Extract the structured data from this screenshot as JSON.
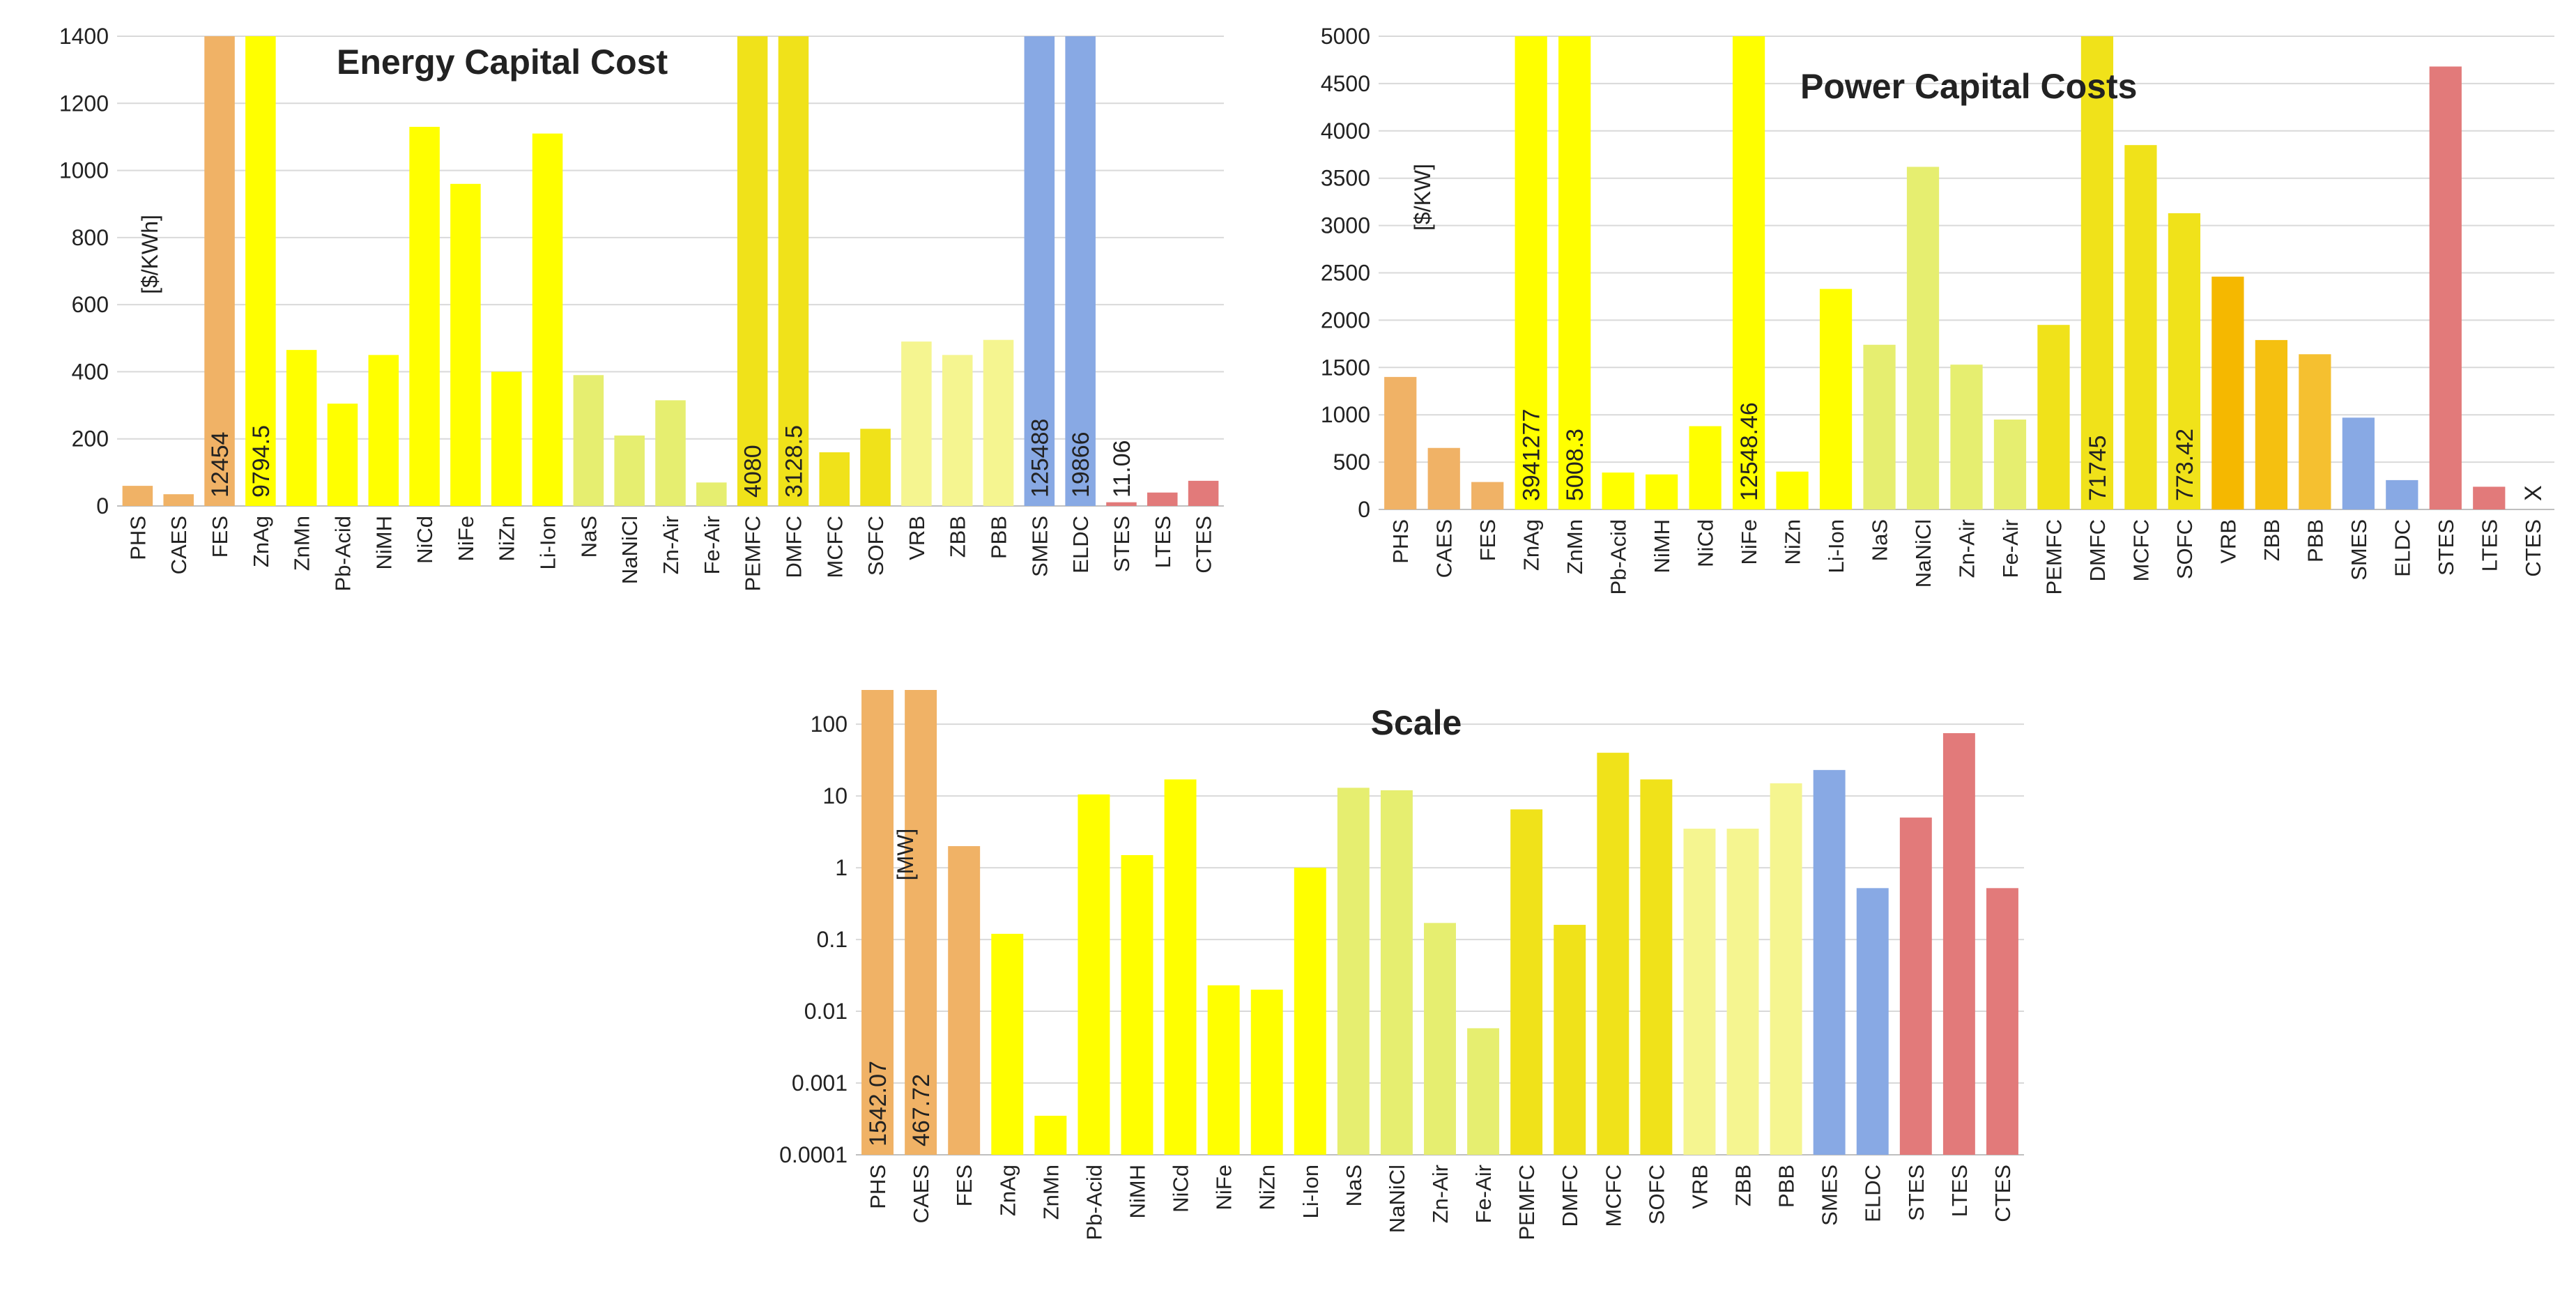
{
  "chart_data": [
    {
      "type": "bar",
      "title": "Energy Capital Cost",
      "y_label": "[$/KWh]",
      "categories": [
        "PHS",
        "CAES",
        "FES",
        "ZnAg",
        "ZnMn",
        "Pb-Acid",
        "NiMH",
        "NiCd",
        "NiFe",
        "NiZn",
        "Li-Ion",
        "NaS",
        "NaNiCl",
        "Zn-Air",
        "Fe-Air",
        "PEMFC",
        "DMFC",
        "MCFC",
        "SOFC",
        "VRB",
        "ZBB",
        "PBB",
        "SMES",
        "ELDC",
        "STES",
        "LTES",
        "CTES"
      ],
      "values": [
        60,
        35,
        12454,
        9794.5,
        465,
        305,
        450,
        1130,
        960,
        400,
        1110,
        390,
        210,
        315,
        70,
        4080,
        3128.5,
        160,
        230,
        490,
        450,
        495,
        125488,
        19866,
        11.06,
        40,
        75
      ],
      "value_labels": [
        null,
        null,
        "12454",
        "9794.5",
        null,
        null,
        null,
        null,
        null,
        null,
        null,
        null,
        null,
        null,
        null,
        "4080",
        "3128.5",
        null,
        null,
        null,
        null,
        null,
        "125488",
        "19866",
        "11.06",
        null,
        null
      ],
      "colors": [
        "#f0b266",
        "#f0b266",
        "#f0b266",
        "#ffff00",
        "#ffff00",
        "#ffff00",
        "#ffff00",
        "#ffff00",
        "#ffff00",
        "#ffff00",
        "#ffff00",
        "#e6ee70",
        "#e6ee70",
        "#e6ee70",
        "#e6ee70",
        "#f0e21a",
        "#f0e21a",
        "#f0e21a",
        "#f0e21a",
        "#f5f590",
        "#f5f590",
        "#f5f590",
        "#88a9e4",
        "#88a9e4",
        "#e27a7a",
        "#e27a7a",
        "#e27a7a"
      ],
      "ylim": [
        0,
        1400
      ],
      "yticks": [
        0,
        200,
        400,
        600,
        800,
        1000,
        1200,
        1400
      ],
      "grid": true,
      "log_scale": false
    },
    {
      "type": "bar",
      "title": "Power Capital Costs",
      "y_label": "[$/KW]",
      "categories": [
        "PHS",
        "CAES",
        "FES",
        "ZnAg",
        "ZnMn",
        "Pb-Acid",
        "NiMH",
        "NiCd",
        "NiFe",
        "NiZn",
        "Li-Ion",
        "NaS",
        "NaNiCl",
        "Zn-Air",
        "Fe-Air",
        "PEMFC",
        "DMFC",
        "MCFC",
        "SOFC",
        "VRB",
        "ZBB",
        "PBB",
        "SMES",
        "ELDC",
        "STES",
        "LTES",
        "CTES"
      ],
      "values": [
        1400,
        650,
        290,
        3941277,
        5008.3,
        390,
        370,
        880,
        12548.46,
        400,
        2330,
        1740,
        3620,
        1530,
        950,
        1950,
        71745,
        3850,
        3130,
        2460,
        1790,
        1640,
        970,
        310,
        4680,
        240,
        null
      ],
      "value_labels": [
        null,
        null,
        null,
        "3941277",
        "5008.3",
        null,
        null,
        null,
        "12548.46",
        null,
        null,
        null,
        null,
        null,
        null,
        null,
        "71745",
        null,
        null,
        null,
        null,
        null,
        null,
        null,
        null,
        null,
        null
      ],
      "annotations": [
        {
          "text": "773.42",
          "category": "SOFC"
        },
        {
          "text": "X",
          "category": "CTES"
        }
      ],
      "colors": [
        "#f0b266",
        "#f0b266",
        "#f0b266",
        "#ffff00",
        "#ffff00",
        "#ffff00",
        "#ffff00",
        "#ffff00",
        "#ffff00",
        "#ffff00",
        "#ffff00",
        "#e6ee70",
        "#e6ee70",
        "#e6ee70",
        "#e6ee70",
        "#f0e21a",
        "#f0e21a",
        "#f0e21a",
        "#f0e21a",
        "#f5b800",
        "#f5c010",
        "#f5c030",
        "#88a9e4",
        "#88a9e4",
        "#e27a7a",
        "#e27a7a",
        "#e27a7a"
      ],
      "ylim": [
        0,
        5000
      ],
      "yticks": [
        0,
        500,
        1000,
        1500,
        2000,
        2500,
        3000,
        3500,
        4000,
        4500,
        5000
      ],
      "grid": true,
      "log_scale": false
    },
    {
      "type": "bar",
      "title": "Scale",
      "y_label": "[MW]",
      "categories": [
        "PHS",
        "CAES",
        "FES",
        "ZnAg",
        "ZnMn",
        "Pb-Acid",
        "NiMH",
        "NiCd",
        "NiFe",
        "NiZn",
        "Li-Ion",
        "NaS",
        "NaNiCl",
        "Zn-Air",
        "Fe-Air",
        "PEMFC",
        "DMFC",
        "MCFC",
        "SOFC",
        "VRB",
        "ZBB",
        "PBB",
        "SMES",
        "ELDC",
        "STES",
        "LTES",
        "CTES"
      ],
      "values": [
        1542.07,
        467.72,
        2,
        0.12,
        0.00035,
        10.5,
        1.5,
        17,
        0.023,
        0.02,
        1,
        13,
        12,
        0.17,
        0.0058,
        6.5,
        0.16,
        40,
        17,
        3.5,
        3.5,
        15,
        23,
        0.52,
        5,
        75,
        0.52
      ],
      "value_labels": [
        "1542.07",
        "467.72",
        null,
        null,
        null,
        null,
        null,
        null,
        null,
        null,
        null,
        null,
        null,
        null,
        null,
        null,
        null,
        null,
        null,
        null,
        null,
        null,
        null,
        null,
        null,
        null,
        null
      ],
      "colors": [
        "#f0b266",
        "#f0b266",
        "#f0b266",
        "#ffff00",
        "#ffff00",
        "#ffff00",
        "#ffff00",
        "#ffff00",
        "#ffff00",
        "#ffff00",
        "#ffff00",
        "#e6ee70",
        "#e6ee70",
        "#e6ee70",
        "#e6ee70",
        "#f0e21a",
        "#f0e21a",
        "#f0e21a",
        "#f0e21a",
        "#f5f590",
        "#f5f590",
        "#f5f590",
        "#88a9e4",
        "#88a9e4",
        "#e27a7a",
        "#e27a7a",
        "#e27a7a"
      ],
      "ylim": [
        0.0001,
        300
      ],
      "yticks": [
        0.0001,
        0.001,
        0.01,
        0.1,
        1,
        10,
        100
      ],
      "grid": true,
      "log_scale": true
    }
  ]
}
